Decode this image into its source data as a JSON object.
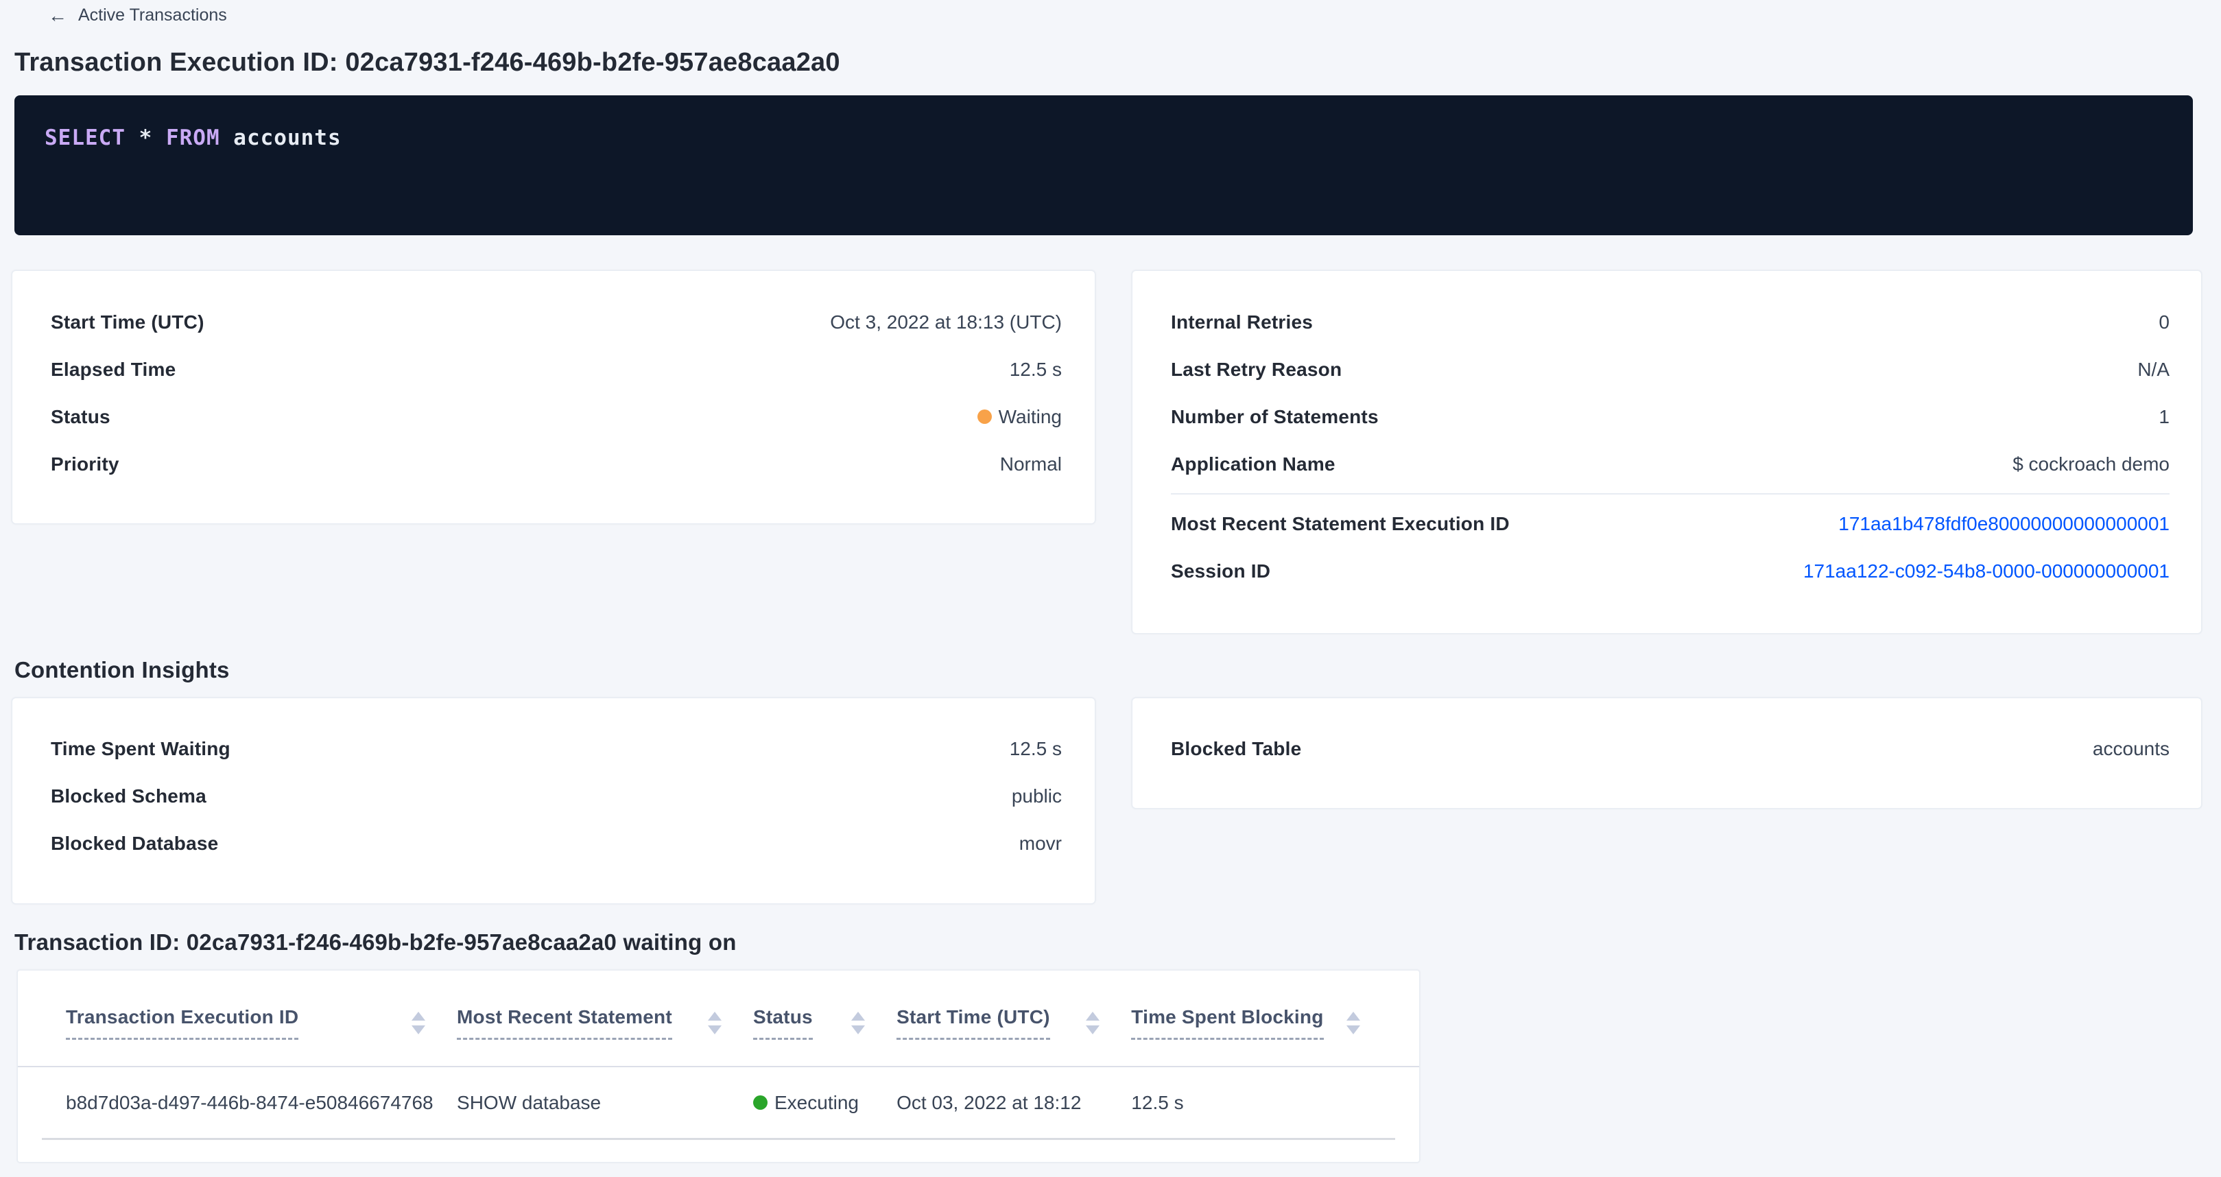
{
  "colors": {
    "page_bg": "#f4f6fa",
    "card_bg": "#ffffff",
    "card_border": "#e7ecf3",
    "sql_bg": "#0d1728",
    "sql_keyword": "#c9aaf5",
    "sql_text": "#e7ecf3",
    "heading_text": "#242a35",
    "value_text": "#394455",
    "link_blue": "#0055ff",
    "status_waiting_orange": "#f8a249",
    "status_executing_green": "#2aa52a",
    "table_header_text": "#47536b",
    "sort_arrow": "#c3cbde"
  },
  "header": {
    "back_icon": "←",
    "back_label": "Active Transactions",
    "title": "Transaction Execution ID: 02ca7931-f246-469b-b2fe-957ae8caa2a0"
  },
  "sql": {
    "keyword_select": "SELECT",
    "star_token": " * ",
    "keyword_from": "FROM",
    "table_token": " accounts"
  },
  "overview": {
    "left_rows": [
      {
        "label": "Start Time (UTC)",
        "value": "Oct 3, 2022 at 18:13 (UTC)"
      },
      {
        "label": "Elapsed Time",
        "value": "12.5 s"
      },
      {
        "label": "Status",
        "value": "Waiting"
      },
      {
        "label": "Priority",
        "value": "Normal"
      }
    ],
    "right_rows": [
      {
        "label": "Internal Retries",
        "value": "0"
      },
      {
        "label": "Last Retry Reason",
        "value": "N/A"
      },
      {
        "label": "Number of Statements",
        "value": "1"
      },
      {
        "label": "Application Name",
        "value": "$ cockroach demo"
      }
    ],
    "right_links": [
      {
        "label": "Most Recent Statement Execution ID",
        "value": "171aa1b478fdf0e80000000000000001"
      },
      {
        "label": "Session ID",
        "value": "171aa122-c092-54b8-0000-000000000001"
      }
    ]
  },
  "contention": {
    "heading": "Contention Insights",
    "left_rows": [
      {
        "label": "Time Spent Waiting",
        "value": "12.5 s"
      },
      {
        "label": "Blocked Schema",
        "value": "public"
      },
      {
        "label": "Blocked Database",
        "value": "movr"
      }
    ],
    "right_rows": [
      {
        "label": "Blocked Table",
        "value": "accounts"
      }
    ]
  },
  "waiting": {
    "heading": "Transaction ID: 02ca7931-f246-469b-b2fe-957ae8caa2a0 waiting on",
    "table": {
      "columns": [
        "Transaction Execution ID",
        "Most Recent Statement",
        "Status",
        "Start Time (UTC)",
        "Time Spent Blocking"
      ],
      "rows": [
        {
          "execution_id": "b8d7d03a-d497-446b-8474-e50846674768",
          "statement": "SHOW database",
          "status": "Executing",
          "start_time": "Oct 03, 2022 at 18:12",
          "time_blocking": "12.5 s"
        }
      ]
    }
  }
}
